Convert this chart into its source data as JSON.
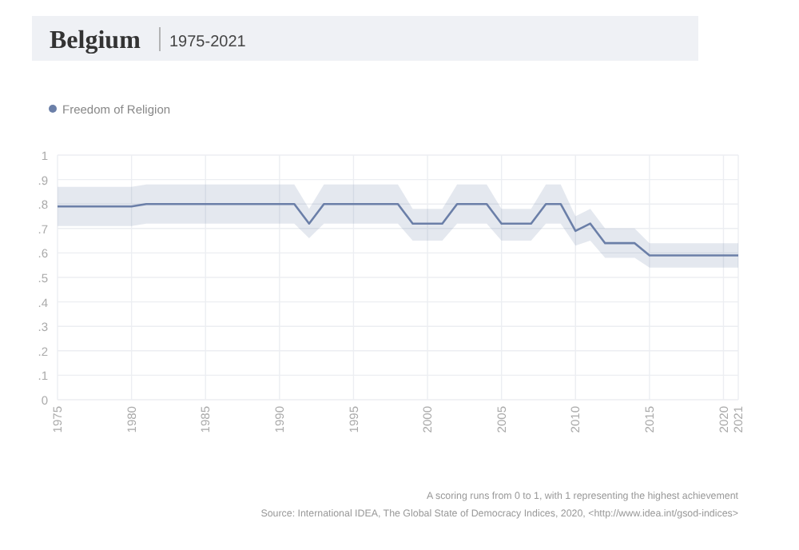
{
  "chart_data": {
    "type": "line",
    "title": "Belgium",
    "subtitle": "1975-2021",
    "x": [
      1975,
      1980,
      1981,
      1991,
      1992,
      1993,
      1998,
      1999,
      2001,
      2002,
      2004,
      2005,
      2007,
      2008,
      2009,
      2010,
      2011,
      2012,
      2014,
      2015,
      2021
    ],
    "series": [
      {
        "name": "Freedom of Religion",
        "color": "#6b7fa8",
        "values": [
          0.79,
          0.79,
          0.8,
          0.8,
          0.72,
          0.8,
          0.8,
          0.72,
          0.72,
          0.8,
          0.8,
          0.72,
          0.72,
          0.8,
          0.8,
          0.69,
          0.72,
          0.64,
          0.64,
          0.59,
          0.59
        ],
        "lower": [
          0.71,
          0.71,
          0.72,
          0.72,
          0.66,
          0.72,
          0.72,
          0.65,
          0.65,
          0.72,
          0.72,
          0.65,
          0.65,
          0.72,
          0.72,
          0.63,
          0.65,
          0.58,
          0.58,
          0.54,
          0.54
        ],
        "upper": [
          0.87,
          0.87,
          0.88,
          0.88,
          0.78,
          0.88,
          0.88,
          0.78,
          0.78,
          0.88,
          0.88,
          0.78,
          0.78,
          0.88,
          0.88,
          0.75,
          0.78,
          0.7,
          0.7,
          0.64,
          0.64
        ]
      }
    ],
    "xlim": [
      1975,
      2021
    ],
    "xticks": [
      1975,
      1980,
      1985,
      1990,
      1995,
      2000,
      2005,
      2010,
      2015,
      2020,
      2021
    ],
    "ylim": [
      0,
      1
    ],
    "yticks": [
      0,
      {
        "value": 0.1,
        "label": ".1"
      },
      {
        "value": 0.2,
        "label": ".2"
      },
      {
        "value": 0.3,
        "label": ".3"
      },
      {
        "value": 0.4,
        "label": ".4"
      },
      {
        "value": 0.5,
        "label": ".5"
      },
      {
        "value": 0.6,
        "label": ".6"
      },
      {
        "value": 0.7,
        "label": ".7"
      },
      {
        "value": 0.8,
        "label": ".8"
      },
      {
        "value": 0.9,
        "label": ".9"
      },
      1
    ],
    "grid": true,
    "legend": "top left",
    "marker": "none",
    "line_style": "solid",
    "annotations": [
      "A scoring runs from 0 to 1, with 1 representing the highest achievement",
      "Source: International IDEA, The Global State of Democracy Indices, 2020, <http://www.idea.int/gsod-indices>"
    ]
  }
}
